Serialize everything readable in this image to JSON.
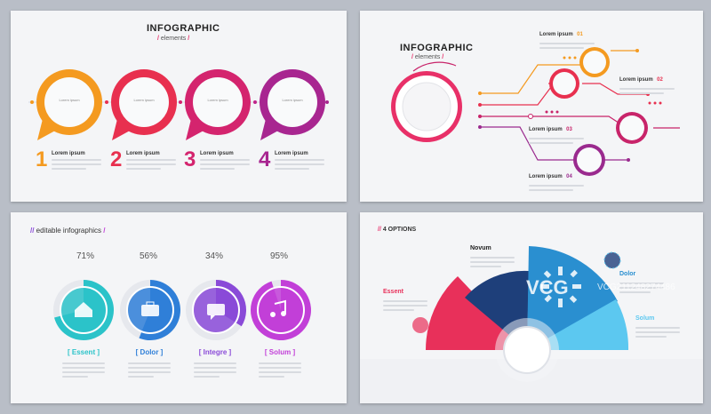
{
  "panel1": {
    "title": "INFOGRAPHIC",
    "subtitle": "elements",
    "circle_text": "Lorem ipsum",
    "items": [
      {
        "num": "1",
        "label": "Lorem ipsum",
        "color": "#f49a20"
      },
      {
        "num": "2",
        "label": "Lorem ipsum",
        "color": "#e8304f"
      },
      {
        "num": "3",
        "label": "Lorem ipsum",
        "color": "#d4246e"
      },
      {
        "num": "4",
        "label": "Lorem ipsum",
        "color": "#a82690"
      }
    ]
  },
  "panel2": {
    "title": "INFOGRAPHIC",
    "subtitle": "elements",
    "items": [
      {
        "label": "Lorem ipsum",
        "num": "01",
        "color": "#f49a20"
      },
      {
        "label": "Lorem ipsum",
        "num": "02",
        "color": "#e8304f"
      },
      {
        "label": "Lorem ipsum",
        "num": "03",
        "color": "#c8246a"
      },
      {
        "label": "Lorem ipsum",
        "num": "04",
        "color": "#9a2a8e"
      }
    ]
  },
  "panel3": {
    "title": "editable infographics",
    "items": [
      {
        "pct": "71%",
        "value": 71,
        "label": "[ Essent ]",
        "color": "#2bc3c9",
        "icon": "house-icon"
      },
      {
        "pct": "56%",
        "value": 56,
        "label": "[ Dolor ]",
        "color": "#2f7fd8",
        "icon": "briefcase-icon"
      },
      {
        "pct": "34%",
        "value": 34,
        "label": "[ Integre ]",
        "color": "#8a4ad8",
        "icon": "chat-icon"
      },
      {
        "pct": "95%",
        "value": 95,
        "label": "[ Solum ]",
        "color": "#c23fd8",
        "icon": "music-icon"
      }
    ]
  },
  "panel4": {
    "title": "4 OPTIONS",
    "options": [
      {
        "label": "Novum",
        "color": "#222222"
      },
      {
        "label": "Dolor",
        "color": "#2a8fd0"
      },
      {
        "label": "Essent",
        "color": "#e8305a"
      },
      {
        "label": "Solum",
        "color": "#5cc8f0"
      }
    ]
  },
  "watermark": {
    "brand": "VCG",
    "id": "VCG211248274486"
  }
}
